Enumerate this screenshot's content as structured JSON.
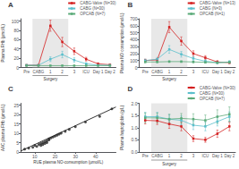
{
  "chart_data": [
    {
      "type": "line",
      "title": "A",
      "ylabel": "Plasma FHb (µmol/L)",
      "categories": [
        "Pre",
        "CABG",
        "1",
        "2",
        "3",
        "ICU",
        "Day 1",
        "Day 2"
      ],
      "series": [
        {
          "name": "CABG-Valve (N=30)",
          "color": "#d42020",
          "values": [
            5,
            5,
            90,
            55,
            35,
            18,
            8,
            6
          ],
          "errors": [
            1,
            1,
            12,
            10,
            7,
            4,
            2,
            1
          ]
        },
        {
          "name": "CABG (N=30)",
          "color": "#5bbfcc",
          "values": [
            5,
            5,
            18,
            28,
            16,
            8,
            5,
            5
          ],
          "errors": [
            1,
            1,
            5,
            7,
            5,
            2,
            1,
            1
          ]
        },
        {
          "name": "OPCAB (N=7)",
          "color": "#5aaa78",
          "values": [
            4,
            4,
            4,
            4,
            4,
            4,
            4,
            4
          ],
          "errors": [
            0.5,
            0.5,
            0.5,
            0.5,
            0.5,
            0.5,
            0.5,
            0.5
          ]
        }
      ],
      "marker": "square",
      "ylim": [
        0,
        105
      ],
      "yticks": [
        0,
        20,
        40,
        60,
        80,
        100
      ],
      "legend": "upper right",
      "grid": false,
      "annotations": [
        {
          "text": "Surgery",
          "x": [
            "CABG",
            "2"
          ]
        }
      ]
    },
    {
      "type": "line",
      "title": "B",
      "ylabel": "Plasma NO consumption (µmol/L)",
      "categories": [
        "Pre",
        "CABG",
        "1",
        "2",
        "3",
        "ICU",
        "Day 1",
        "Day 2"
      ],
      "series": [
        {
          "name": "CABG-Valve (N=13)",
          "color": "#d42020",
          "values": [
            100,
            110,
            580,
            380,
            200,
            140,
            80,
            70
          ],
          "errors": [
            20,
            20,
            80,
            60,
            40,
            30,
            20,
            15
          ]
        },
        {
          "name": "CABG (N=3)",
          "color": "#5bbfcc",
          "values": [
            100,
            120,
            260,
            190,
            130,
            90,
            70,
            80
          ],
          "errors": [
            20,
            25,
            55,
            40,
            30,
            20,
            15,
            20
          ]
        },
        {
          "name": "OPCAB (N=1)",
          "color": "#5aaa78",
          "values": [
            80,
            80,
            85,
            85,
            80,
            75,
            70,
            75
          ],
          "errors": [
            10,
            10,
            10,
            10,
            10,
            8,
            8,
            8
          ]
        }
      ],
      "marker": "square",
      "ylim": [
        0,
        700
      ],
      "yticks": [
        0,
        100,
        200,
        300,
        400,
        500,
        600,
        700
      ],
      "legend": "upper right",
      "grid": false,
      "annotations": [
        {
          "text": "Surgery",
          "x": [
            "CABG",
            "2"
          ]
        }
      ]
    },
    {
      "type": "scatter",
      "title": "C",
      "xlabel": "RUE plasma NO-consumption (µmol/L)",
      "ylabel": "AAC plasma FHb (µmol/L)",
      "series": [
        {
          "type": "scatter",
          "color": "#222222",
          "x": [
            5,
            7,
            9,
            10,
            11,
            12,
            13,
            13,
            14,
            14,
            15,
            15,
            16,
            16,
            17,
            17,
            18,
            19,
            20,
            21,
            22,
            23,
            25,
            27,
            30,
            35,
            42,
            48
          ],
          "values": [
            1.5,
            2.0,
            2.5,
            3.5,
            3.0,
            4.0,
            4.5,
            3.5,
            5.0,
            4.0,
            5.5,
            4.5,
            6.0,
            5.0,
            6.5,
            7.0,
            7.5,
            8.0,
            8.5,
            9.0,
            9.5,
            10.0,
            11.0,
            12.0,
            13.5,
            16.0,
            19.0,
            23.0
          ]
        },
        {
          "type": "line",
          "color": "black",
          "x": [
            3,
            50
          ],
          "values": [
            0.5,
            24
          ]
        }
      ],
      "xlim": [
        3,
        50
      ],
      "ylim": [
        0,
        26
      ],
      "xticks": [
        10,
        20,
        30,
        40
      ],
      "yticks": [
        0,
        5,
        10,
        15,
        20,
        25
      ],
      "grid": false
    },
    {
      "type": "line",
      "title": "D",
      "ylabel": "Plasma haptoglobin (g/L)",
      "categories": [
        "Pre",
        "CABG",
        "1",
        "2",
        "3",
        "ICU",
        "Day 1",
        "Day 2"
      ],
      "series": [
        {
          "name": "CABG-Valve (N=30)",
          "color": "#d42020",
          "values": [
            1.3,
            1.28,
            1.15,
            1.05,
            0.55,
            0.5,
            0.75,
            1.05
          ],
          "errors": [
            0.15,
            0.15,
            0.18,
            0.18,
            0.12,
            0.1,
            0.15,
            0.18
          ]
        },
        {
          "name": "CABG (N=30)",
          "color": "#5bbfcc",
          "values": [
            1.45,
            1.45,
            1.35,
            1.3,
            1.1,
            1.05,
            1.25,
            1.45
          ],
          "errors": [
            0.18,
            0.18,
            0.18,
            0.18,
            0.18,
            0.18,
            0.18,
            0.2
          ]
        },
        {
          "name": "OPCAB (N=7)",
          "color": "#5aaa78",
          "values": [
            1.4,
            1.4,
            1.35,
            1.38,
            1.35,
            1.3,
            1.45,
            1.55
          ],
          "errors": [
            0.2,
            0.2,
            0.2,
            0.2,
            0.22,
            0.22,
            0.28,
            0.3
          ]
        }
      ],
      "marker": "square",
      "ylim": [
        0.0,
        2.0
      ],
      "yticks": [
        {
          "value": 0,
          "label": "0.0"
        },
        {
          "value": 0.5,
          "label": "0.5"
        },
        {
          "value": 1,
          "label": "1.0"
        },
        {
          "value": 1.5,
          "label": "1.5"
        },
        {
          "value": 2,
          "label": "2.0"
        }
      ],
      "legend": "upper right",
      "grid": false,
      "annotations": [
        {
          "text": "Surgery",
          "x": [
            "CABG",
            "2"
          ]
        }
      ]
    }
  ]
}
